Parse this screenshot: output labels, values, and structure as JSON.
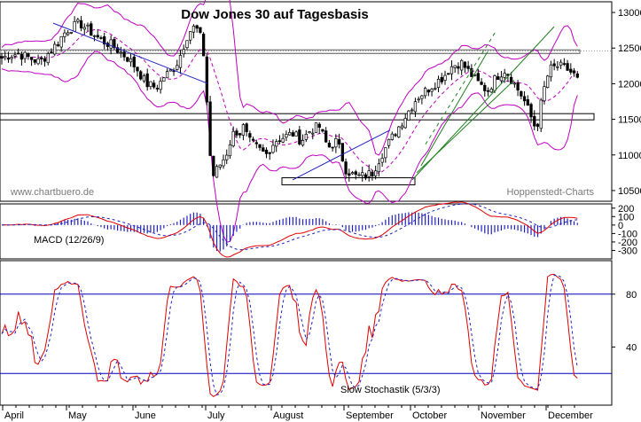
{
  "chart_data": {
    "type": "candlestick",
    "title": "Dow Jones 30 auf Tagesbasis",
    "watermark_left": "www.chartbuero.de",
    "watermark_right": "Hoppenstedt-Charts",
    "x_labels": [
      "April",
      "May",
      "June",
      "July",
      "August",
      "September",
      "October",
      "November",
      "December"
    ],
    "price_axis": {
      "ylim": [
        10350,
        13150
      ],
      "ticks": [
        10500,
        11000,
        11500,
        12000,
        12500,
        13000
      ]
    },
    "price_keypoints": {
      "x": [
        0,
        10,
        20,
        30,
        45,
        60,
        75,
        90,
        105,
        115,
        125,
        135,
        145,
        155,
        165,
        175,
        180,
        185,
        190,
        195,
        200,
        205,
        210,
        215,
        220,
        225,
        228,
        231,
        234,
        237,
        240,
        245,
        250,
        255,
        260,
        265,
        270,
        275,
        280,
        290,
        300,
        310,
        320,
        330,
        340,
        350,
        360,
        370,
        380,
        390,
        400,
        410,
        420,
        430,
        440,
        450,
        460,
        470,
        480,
        490,
        500,
        510,
        520,
        530,
        540,
        550,
        560,
        570,
        580,
        590,
        600,
        605,
        610,
        615,
        620,
        630,
        640,
        650,
        655
      ],
      "y": [
        12350,
        12400,
        12420,
        12380,
        12300,
        12500,
        12750,
        12850,
        12700,
        12600,
        12550,
        12450,
        12350,
        12200,
        12000,
        11950,
        12000,
        12100,
        12150,
        12200,
        12300,
        12450,
        12650,
        12750,
        12800,
        12700,
        12550,
        12300,
        11600,
        11000,
        10700,
        10800,
        10900,
        11000,
        11200,
        11350,
        11300,
        11400,
        11200,
        11100,
        11000,
        11200,
        11250,
        11300,
        11200,
        11350,
        11400,
        11100,
        11200,
        10800,
        10700,
        10700,
        10750,
        11000,
        11200,
        11400,
        11600,
        11800,
        11900,
        12000,
        12100,
        12250,
        12300,
        12150,
        12000,
        11900,
        12100,
        12200,
        12000,
        11800,
        11500,
        11350,
        11700,
        12000,
        12200,
        12250,
        12200,
        12100,
        11900
      ]
    },
    "bollinger_band_width": 450,
    "horizontal_lines": [
      12450,
      11530,
      10630
    ],
    "trendlines": [
      {
        "from": [
          60,
          12850
        ],
        "to": [
          235,
          12000
        ]
      },
      {
        "from": [
          330,
          10650
        ],
        "to": [
          440,
          11350
        ]
      },
      {
        "from": [
          465,
          10650
        ],
        "to": [
          625,
          12800
        ]
      },
      {
        "from": [
          475,
          10850
        ],
        "to": [
          550,
          12450
        ]
      },
      {
        "from": [
          470,
          10750
        ],
        "to": [
          580,
          12050
        ]
      }
    ],
    "macd": {
      "label": "MACD (12/26/9)",
      "ticks": [
        200,
        100,
        0,
        -100,
        -200,
        -300
      ],
      "ylim": [
        -400,
        250
      ]
    },
    "stochastic": {
      "label": "Slow Stochastik (5/3/3)",
      "ticks": [
        80,
        40
      ],
      "lines": [
        80,
        20
      ],
      "ylim": [
        0,
        100
      ]
    }
  }
}
